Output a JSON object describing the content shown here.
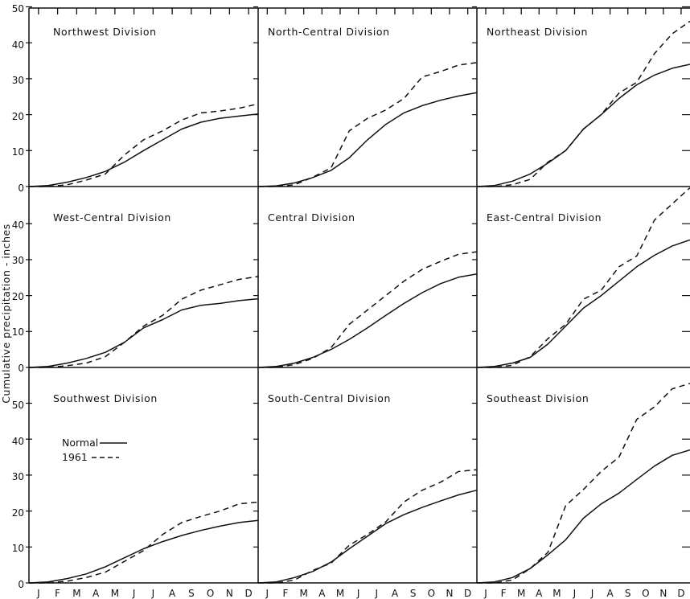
{
  "ylabel": "Cumulative  precipitation - inches",
  "legend": {
    "normal_label": "Normal",
    "y1961_label": "1961"
  },
  "y_ticks_top": [
    "50",
    "40",
    "30",
    "20",
    "10",
    "0"
  ],
  "y_ticks_mid": [
    "40",
    "30",
    "20",
    "10",
    "0"
  ],
  "y_ticks_bottom": [
    "50",
    "40",
    "30",
    "20",
    "10",
    "0"
  ],
  "chart_data": [
    {
      "type": "line",
      "title": "Northwest Division",
      "categories": [
        "J",
        "F",
        "M",
        "A",
        "M",
        "J",
        "J",
        "A",
        "S",
        "O",
        "N",
        "D"
      ],
      "series": [
        {
          "name": "Normal",
          "style": "solid",
          "values": [
            0.3,
            1.2,
            2.5,
            4.2,
            6.8,
            10,
            13,
            16,
            17.9,
            19,
            19.6,
            20.2
          ]
        },
        {
          "name": "1961",
          "style": "dashed",
          "values": [
            0,
            0.5,
            1.8,
            3.5,
            8.8,
            13,
            15.5,
            18.5,
            20.5,
            21,
            21.8,
            23
          ]
        }
      ]
    },
    {
      "type": "line",
      "title": "North-Central Division",
      "categories": [
        "J",
        "F",
        "M",
        "A",
        "M",
        "J",
        "J",
        "A",
        "S",
        "O",
        "N",
        "D"
      ],
      "series": [
        {
          "name": "Normal",
          "style": "solid",
          "values": [
            0.2,
            1,
            2.5,
            4.5,
            8,
            13,
            17.3,
            20.5,
            22.5,
            24,
            25.2,
            26.1
          ]
        },
        {
          "name": "1961",
          "style": "dashed",
          "values": [
            0,
            0.5,
            2.6,
            5.2,
            15.5,
            19,
            21.3,
            24.5,
            30.5,
            32,
            33.8,
            34.5
          ]
        }
      ]
    },
    {
      "type": "line",
      "title": "Northeast Division",
      "categories": [
        "J",
        "F",
        "M",
        "A",
        "M",
        "J",
        "J",
        "A",
        "S",
        "O",
        "N",
        "D"
      ],
      "series": [
        {
          "name": "Normal",
          "style": "solid",
          "values": [
            0.3,
            1.5,
            3.5,
            6.5,
            10,
            16,
            20,
            24.5,
            28.3,
            31,
            32.9,
            34
          ]
        },
        {
          "name": "1961",
          "style": "dashed",
          "values": [
            0,
            0.5,
            2,
            6.8,
            10,
            16,
            20,
            26,
            29,
            37,
            42.5,
            46
          ]
        }
      ]
    },
    {
      "type": "line",
      "title": "West-Central Division",
      "categories": [
        "J",
        "F",
        "M",
        "A",
        "M",
        "J",
        "J",
        "A",
        "S",
        "O",
        "N",
        "D"
      ],
      "series": [
        {
          "name": "Normal",
          "style": "solid",
          "values": [
            0.3,
            1.2,
            2.5,
            4.2,
            7,
            11,
            13.3,
            16,
            17.3,
            17.8,
            18.6,
            19.1
          ]
        },
        {
          "name": "1961",
          "style": "dashed",
          "values": [
            0,
            0.5,
            1.2,
            3,
            7,
            11.5,
            14.5,
            19,
            21.5,
            23,
            24.5,
            25.3
          ]
        }
      ]
    },
    {
      "type": "line",
      "title": "Central Division",
      "categories": [
        "J",
        "F",
        "M",
        "A",
        "M",
        "J",
        "J",
        "A",
        "S",
        "O",
        "N",
        "D"
      ],
      "series": [
        {
          "name": "Normal",
          "style": "solid",
          "values": [
            0.3,
            1.2,
            2.8,
            5,
            7.8,
            11,
            14.5,
            17.8,
            20.8,
            23.3,
            25.1,
            26
          ]
        },
        {
          "name": "1961",
          "style": "dashed",
          "values": [
            0,
            0.8,
            2.5,
            5.5,
            12,
            16,
            20,
            24,
            27.3,
            29.5,
            31.5,
            32.2
          ]
        }
      ]
    },
    {
      "type": "line",
      "title": "East-Central Division",
      "categories": [
        "J",
        "F",
        "M",
        "A",
        "M",
        "J",
        "J",
        "A",
        "S",
        "O",
        "N",
        "D"
      ],
      "series": [
        {
          "name": "Normal",
          "style": "solid",
          "values": [
            0.3,
            1.2,
            2.8,
            6.5,
            11.5,
            16.5,
            20,
            24,
            28,
            31.2,
            33.8,
            35.5
          ]
        },
        {
          "name": "1961",
          "style": "dashed",
          "values": [
            0,
            0.6,
            3,
            8,
            12,
            19,
            21.5,
            28,
            31,
            41,
            45.5,
            50
          ]
        }
      ]
    },
    {
      "type": "line",
      "title": "Southwest Division",
      "categories": [
        "J",
        "F",
        "M",
        "A",
        "M",
        "J",
        "J",
        "A",
        "S",
        "O",
        "N",
        "D"
      ],
      "series": [
        {
          "name": "Normal",
          "style": "solid",
          "values": [
            0.3,
            1.2,
            2.5,
            4.5,
            7,
            9.5,
            11.5,
            13.2,
            14.6,
            15.8,
            16.8,
            17.4
          ]
        },
        {
          "name": "1961",
          "style": "dashed",
          "values": [
            0,
            0.5,
            1.5,
            3,
            6,
            9,
            13.5,
            16.8,
            18.5,
            20,
            22,
            22.5
          ]
        }
      ]
    },
    {
      "type": "line",
      "title": "South-Central Division",
      "categories": [
        "J",
        "F",
        "M",
        "A",
        "M",
        "J",
        "J",
        "A",
        "S",
        "O",
        "N",
        "D"
      ],
      "series": [
        {
          "name": "Normal",
          "style": "solid",
          "values": [
            0.3,
            1.5,
            3.2,
            5.8,
            9.5,
            13,
            16.5,
            19,
            21,
            22.8,
            24.5,
            25.8
          ]
        },
        {
          "name": "1961",
          "style": "dashed",
          "values": [
            0,
            0.8,
            3.5,
            5.5,
            10.5,
            13.5,
            17,
            22.5,
            25.8,
            28,
            31,
            31.5
          ]
        }
      ]
    },
    {
      "type": "line",
      "title": "Southeast Division",
      "categories": [
        "J",
        "F",
        "M",
        "A",
        "M",
        "J",
        "J",
        "A",
        "S",
        "O",
        "N",
        "D"
      ],
      "series": [
        {
          "name": "Normal",
          "style": "solid",
          "values": [
            0.3,
            1.5,
            4,
            7.8,
            12,
            18,
            22,
            25,
            28.8,
            32.5,
            35.5,
            37
          ]
        },
        {
          "name": "1961",
          "style": "dashed",
          "values": [
            0,
            0.8,
            4,
            8.5,
            21.5,
            26,
            31,
            35,
            45.5,
            49,
            54,
            55.5
          ]
        }
      ]
    }
  ]
}
